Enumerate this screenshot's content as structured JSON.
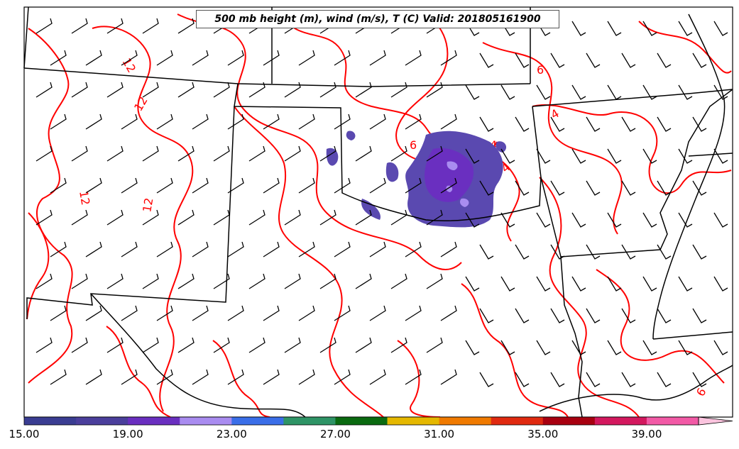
{
  "title": "500 mb height (m), wind (m/s), T (C) Valid: 201805161900",
  "colorbar": {
    "labels": [
      "15.00",
      "19.00",
      "23.00",
      "27.00",
      "31.00",
      "35.00",
      "39.00"
    ],
    "colors": [
      "#3a3d92",
      "#4b3f9c",
      "#6a2fc0",
      "#a98cf0",
      "#3a6ee8",
      "#2e9466",
      "#0a6a10",
      "#e5b800",
      "#f07a00",
      "#e02a10",
      "#a80010",
      "#d3185e",
      "#f25aa6",
      "#fbc4de"
    ]
  },
  "contours": {
    "color": "#ff0000",
    "labels": [
      "12",
      "12",
      "12",
      "12",
      "6",
      "6",
      "4",
      "4",
      "4",
      "6"
    ]
  },
  "precip_colors": [
    "#5a49b0",
    "#6a2fc0",
    "#a98cf0"
  ],
  "icons": [
    "wind-barb-icon"
  ]
}
